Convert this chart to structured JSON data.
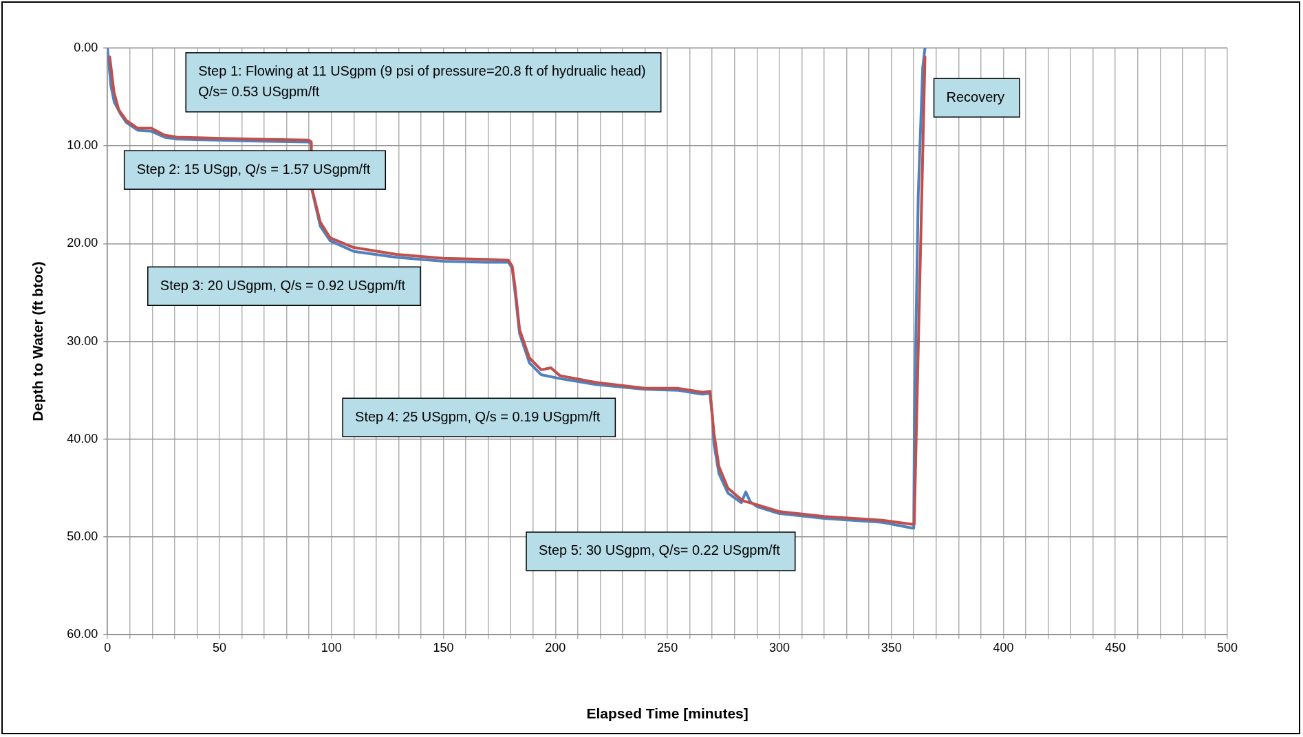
{
  "chart_data": {
    "type": "line",
    "xlabel": "Elapsed Time [minutes]",
    "ylabel": "Depth to Water (ft btoc)",
    "xlim": [
      0,
      500
    ],
    "ylim": [
      60,
      0
    ],
    "xticks": [
      0,
      {
        "value": 10,
        "label": null
      },
      {
        "value": 20,
        "label": null
      },
      {
        "value": 30,
        "label": null
      },
      {
        "value": 40,
        "label": null
      },
      50,
      {
        "value": 60,
        "label": null
      },
      {
        "value": 70,
        "label": null
      },
      {
        "value": 80,
        "label": null
      },
      {
        "value": 90,
        "label": null
      },
      100,
      {
        "value": 110,
        "label": null
      },
      {
        "value": 120,
        "label": null
      },
      {
        "value": 130,
        "label": null
      },
      {
        "value": 140,
        "label": null
      },
      150,
      {
        "value": 160,
        "label": null
      },
      {
        "value": 170,
        "label": null
      },
      {
        "value": 180,
        "label": null
      },
      {
        "value": 190,
        "label": null
      },
      200,
      {
        "value": 210,
        "label": null
      },
      {
        "value": 220,
        "label": null
      },
      {
        "value": 230,
        "label": null
      },
      {
        "value": 240,
        "label": null
      },
      250,
      {
        "value": 260,
        "label": null
      },
      {
        "value": 270,
        "label": null
      },
      {
        "value": 280,
        "label": null
      },
      {
        "value": 290,
        "label": null
      },
      300,
      {
        "value": 310,
        "label": null
      },
      {
        "value": 320,
        "label": null
      },
      {
        "value": 330,
        "label": null
      },
      {
        "value": 340,
        "label": null
      },
      350,
      {
        "value": 360,
        "label": null
      },
      {
        "value": 370,
        "label": null
      },
      {
        "value": 380,
        "label": null
      },
      {
        "value": 390,
        "label": null
      },
      400,
      {
        "value": 410,
        "label": null
      },
      {
        "value": 420,
        "label": null
      },
      {
        "value": 430,
        "label": null
      },
      {
        "value": 440,
        "label": null
      },
      450,
      {
        "value": 460,
        "label": null
      },
      {
        "value": 470,
        "label": null
      },
      {
        "value": 480,
        "label": null
      },
      {
        "value": 490,
        "label": null
      },
      500
    ],
    "yticks": [
      {
        "value": 0,
        "label": "0.00"
      },
      {
        "value": 10,
        "label": "10.00"
      },
      {
        "value": 20,
        "label": "20.00"
      },
      {
        "value": 30,
        "label": "30.00"
      },
      {
        "value": 40,
        "label": "40.00"
      },
      {
        "value": 50,
        "label": "50.00"
      },
      {
        "value": 60,
        "label": "60.00"
      }
    ],
    "grid": true,
    "legend": false,
    "marker": "none",
    "line_style": "solid",
    "series": [
      {
        "color": "#4f81bd",
        "x": [
          0,
          1.5,
          3,
          6,
          8.4,
          13.5,
          19.6,
          25.4,
          30.9,
          63,
          89.7,
          90.8,
          91.3,
          95,
          99.4,
          110,
          129,
          150,
          169,
          179,
          180.7,
          182,
          184,
          188.4,
          193.6,
          202,
          218,
          240,
          255,
          265.6,
          269,
          270,
          270.8,
          273,
          277,
          283,
          285,
          287,
          290,
          299.7,
          320,
          346,
          359.5,
          360,
          360.3,
          362,
          364,
          365
        ],
        "values": [
          0,
          3.8,
          5.5,
          6.8,
          7.6,
          8.4,
          8.5,
          9.1,
          9.3,
          9.5,
          9.6,
          9.7,
          14.5,
          18.2,
          19.7,
          20.8,
          21.4,
          21.8,
          21.9,
          21.9,
          22.5,
          25,
          29.2,
          32.2,
          33.4,
          33.8,
          34.4,
          34.9,
          35,
          35.4,
          35.3,
          37.5,
          40.5,
          43.5,
          45.5,
          46.5,
          45.4,
          46.4,
          46.9,
          47.6,
          48.1,
          48.5,
          49.1,
          49.1,
          38,
          15,
          2,
          0
        ]
      },
      {
        "color": "#c0504d",
        "x": [
          1,
          2.9,
          5,
          8.4,
          13.5,
          19.6,
          25.4,
          30.9,
          63,
          89.7,
          91,
          91.3,
          95,
          99.4,
          110,
          129,
          150,
          169,
          179,
          180.7,
          182,
          184,
          188.4,
          193.6,
          198,
          202,
          218,
          240,
          255,
          265.6,
          269,
          270.8,
          273,
          277,
          283.6,
          290,
          299.7,
          320,
          346,
          359,
          360.2,
          365
        ],
        "values": [
          0.9,
          4.5,
          6.3,
          7.4,
          8.2,
          8.2,
          8.9,
          9.1,
          9.3,
          9.4,
          9.6,
          14.4,
          17.8,
          19.4,
          20.4,
          21.1,
          21.5,
          21.6,
          21.7,
          22.3,
          24.5,
          28.8,
          31.7,
          32.9,
          32.7,
          33.5,
          34.2,
          34.8,
          34.8,
          35.2,
          35.1,
          39.4,
          42.8,
          45,
          46.3,
          46.7,
          47.4,
          47.9,
          48.3,
          48.7,
          48.7,
          0.9
        ]
      }
    ],
    "annotations": [
      "Step 1: Flowing at 11 USgpm (9 psi of pressure=20.8 ft of hydrualic head)\nQ/s= 0.53 USgpm/ft",
      "Step 2: 15 USgp, Q/s = 1.57 USgpm/ft",
      "Step 3: 20 USgpm, Q/s = 0.92 USgpm/ft",
      "Step 4: 25 USgpm, Q/s = 0.19 USgpm/ft",
      "Step 5: 30 USgpm, Q/s= 0.22 USgpm/ft",
      "Recovery"
    ]
  }
}
